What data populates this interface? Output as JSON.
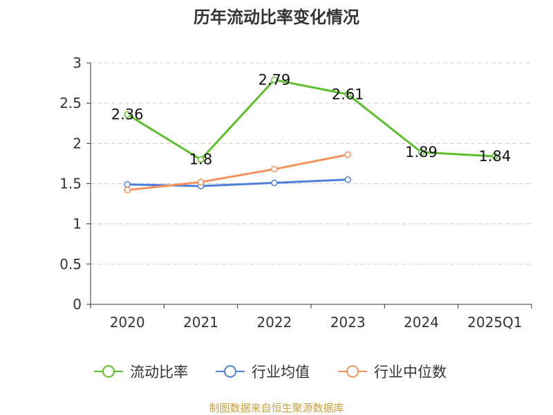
{
  "chart_data": {
    "type": "line",
    "title": "历年流动比率变化情况",
    "categories": [
      "2020",
      "2021",
      "2022",
      "2023",
      "2024",
      "2025Q1"
    ],
    "ylim": [
      0,
      3
    ],
    "yticks": [
      0,
      0.5,
      1,
      1.5,
      2,
      2.5,
      3
    ],
    "ytick_labels": [
      "0",
      "0.5",
      "1",
      "1.5",
      "2",
      "2.5",
      "3"
    ],
    "grid": "horizontal dashed",
    "legend_position": "bottom-center",
    "series": [
      {
        "name": "流动比率",
        "color": "#5cbf2a",
        "show_labels": true,
        "values": [
          2.36,
          1.8,
          2.79,
          2.61,
          1.89,
          1.84
        ],
        "labels": [
          "2.36",
          "1.8",
          "2.79",
          "2.61",
          "1.89",
          "1.84"
        ]
      },
      {
        "name": "行业均值",
        "color": "#4f7fdb",
        "show_labels": false,
        "values": [
          1.49,
          1.47,
          1.51,
          1.55,
          null,
          null
        ]
      },
      {
        "name": "行业中位数",
        "color": "#f5925b",
        "show_labels": false,
        "values": [
          1.42,
          1.52,
          1.68,
          1.86,
          null,
          null
        ]
      }
    ],
    "source_note": "制图数据来自恒生聚源数据库"
  }
}
